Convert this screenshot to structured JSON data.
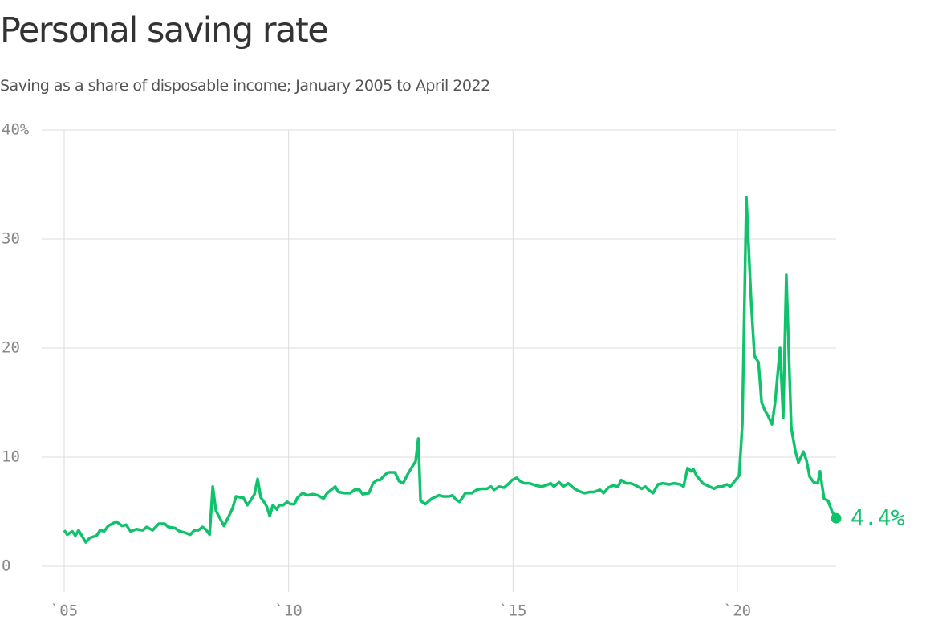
{
  "chart_data": {
    "type": "line",
    "title": "Personal saving rate",
    "subtitle": "Saving as a share of disposable income; January 2005 to April 2022",
    "xlim": [
      2005,
      2022.2
    ],
    "ylim": [
      0,
      40
    ],
    "xticks": [
      {
        "value": 2005,
        "label": "`05"
      },
      {
        "value": 2010,
        "label": "`10"
      },
      {
        "value": 2015,
        "label": "`15"
      },
      {
        "value": 2020,
        "label": "`20"
      }
    ],
    "yticks": [
      0,
      10,
      20,
      30,
      {
        "value": 40,
        "label": "40%"
      }
    ],
    "grid": true,
    "series": [
      {
        "color": "#10c26c",
        "x": [
          2005.0,
          2005.07,
          2005.18,
          2005.25,
          2005.32,
          2005.48,
          2005.57,
          2005.72,
          2005.8,
          2005.89,
          2005.98,
          2006.16,
          2006.29,
          2006.38,
          2006.48,
          2006.61,
          2006.75,
          2006.84,
          2006.97,
          2007.11,
          2007.24,
          2007.32,
          2007.47,
          2007.57,
          2007.68,
          2007.81,
          2007.9,
          2007.99,
          2008.08,
          2008.15,
          2008.24,
          2008.31,
          2008.38,
          2008.47,
          2008.56,
          2008.67,
          2008.75,
          2008.83,
          2008.93,
          2008.99,
          2009.08,
          2009.15,
          2009.24,
          2009.31,
          2009.38,
          2009.47,
          2009.52,
          2009.58,
          2009.65,
          2009.74,
          2009.79,
          2009.88,
          2009.97,
          2010.04,
          2010.13,
          2010.2,
          2010.31,
          2010.42,
          2010.54,
          2010.65,
          2010.78,
          2010.86,
          2011.04,
          2011.11,
          2011.26,
          2011.37,
          2011.47,
          2011.58,
          2011.65,
          2011.79,
          2011.88,
          2011.97,
          2012.04,
          2012.15,
          2012.22,
          2012.37,
          2012.46,
          2012.55,
          2012.65,
          2012.78,
          2012.83,
          2012.89,
          2012.94,
          2013.05,
          2013.19,
          2013.35,
          2013.44,
          2013.58,
          2013.65,
          2013.73,
          2013.81,
          2013.94,
          2014.08,
          2014.19,
          2014.3,
          2014.42,
          2014.51,
          2014.58,
          2014.69,
          2014.8,
          2014.91,
          2014.98,
          2015.08,
          2015.16,
          2015.25,
          2015.37,
          2015.51,
          2015.64,
          2015.73,
          2015.84,
          2015.91,
          2016.03,
          2016.12,
          2016.23,
          2016.37,
          2016.46,
          2016.59,
          2016.71,
          2016.8,
          2016.94,
          2017.02,
          2017.12,
          2017.23,
          2017.34,
          2017.41,
          2017.52,
          2017.62,
          2017.69,
          2017.78,
          2017.87,
          2017.95,
          2018.02,
          2018.12,
          2018.23,
          2018.34,
          2018.48,
          2018.59,
          2018.73,
          2018.8,
          2018.89,
          2018.97,
          2019.02,
          2019.09,
          2019.23,
          2019.38,
          2019.48,
          2019.56,
          2019.66,
          2019.77,
          2019.84,
          2019.98,
          2020.04,
          2020.11,
          2020.2,
          2020.31,
          2020.38,
          2020.47,
          2020.54,
          2020.61,
          2020.68,
          2020.77,
          2020.84,
          2020.95,
          2021.02,
          2021.09,
          2021.2,
          2021.29,
          2021.36,
          2021.47,
          2021.54,
          2021.61,
          2021.7,
          2021.79,
          2021.84,
          2021.93,
          2022.02,
          2022.11,
          2022.2
        ],
        "values": [
          3.3,
          2.9,
          3.2,
          2.8,
          3.3,
          2.2,
          2.6,
          2.8,
          3.3,
          3.2,
          3.7,
          4.1,
          3.7,
          3.8,
          3.2,
          3.4,
          3.3,
          3.6,
          3.3,
          3.9,
          3.9,
          3.6,
          3.5,
          3.2,
          3.1,
          2.9,
          3.3,
          3.3,
          3.6,
          3.4,
          2.9,
          7.3,
          5.1,
          4.4,
          3.7,
          4.6,
          5.3,
          6.4,
          6.3,
          6.3,
          5.6,
          6.0,
          6.6,
          8.0,
          6.3,
          5.8,
          5.4,
          4.6,
          5.6,
          5.2,
          5.6,
          5.6,
          5.9,
          5.7,
          5.7,
          6.3,
          6.7,
          6.5,
          6.6,
          6.5,
          6.2,
          6.7,
          7.3,
          6.8,
          6.7,
          6.7,
          7.0,
          7.0,
          6.6,
          6.7,
          7.6,
          7.9,
          7.9,
          8.4,
          8.6,
          8.6,
          7.8,
          7.6,
          8.4,
          9.3,
          9.6,
          11.7,
          6.0,
          5.7,
          6.2,
          6.5,
          6.4,
          6.4,
          6.5,
          6.1,
          5.9,
          6.7,
          6.7,
          7.0,
          7.1,
          7.1,
          7.3,
          7.0,
          7.3,
          7.2,
          7.6,
          7.9,
          8.1,
          7.8,
          7.6,
          7.6,
          7.4,
          7.3,
          7.4,
          7.6,
          7.3,
          7.7,
          7.3,
          7.6,
          7.1,
          6.9,
          6.7,
          6.8,
          6.8,
          7.0,
          6.7,
          7.2,
          7.4,
          7.3,
          7.9,
          7.6,
          7.6,
          7.5,
          7.3,
          7.1,
          7.3,
          7.0,
          6.7,
          7.5,
          7.6,
          7.5,
          7.6,
          7.5,
          7.3,
          9.0,
          8.7,
          8.9,
          8.3,
          7.6,
          7.3,
          7.1,
          7.3,
          7.3,
          7.5,
          7.3,
          8.0,
          8.3,
          13.0,
          33.8,
          24.0,
          19.3,
          18.7,
          15.0,
          14.3,
          13.8,
          13.0,
          15.0,
          20.0,
          13.6,
          26.7,
          12.7,
          10.6,
          9.5,
          10.5,
          9.7,
          8.2,
          7.7,
          7.6,
          8.7,
          6.2,
          6.0,
          5.0,
          4.4
        ]
      }
    ],
    "annotations": [
      {
        "text": "4.4%"
      }
    ]
  }
}
